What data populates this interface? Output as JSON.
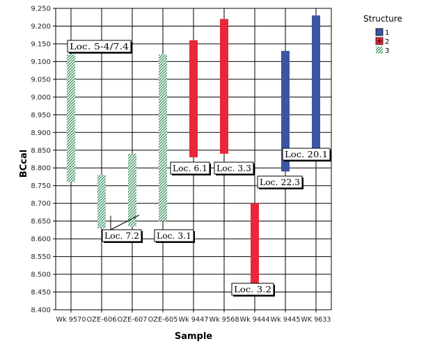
{
  "chart_data": {
    "type": "bar",
    "subtype": "floating-range",
    "xlabel": "Sample",
    "ylabel": "BCcal",
    "ylim": [
      8.4,
      9.25
    ],
    "yticks": [
      "9.250",
      "9.200",
      "9.150",
      "9.100",
      "9.050",
      "9.000",
      "8.950",
      "8.900",
      "8.850",
      "8.800",
      "8.750",
      "8.700",
      "8.650",
      "8.600",
      "8.550",
      "8.500",
      "8.450",
      "8.400"
    ],
    "categories": [
      "Wk 9570",
      "OZE-606",
      "OZE-607",
      "OZE-605",
      "Wk 9447",
      "Wk 9568",
      "Wk 9444",
      "Wk 9445",
      "WK 9633"
    ],
    "grid": true,
    "legend": {
      "title": "Structure",
      "placement": "top-right",
      "items": [
        {
          "label": "1",
          "color": "#3a55a4",
          "pattern": "solid"
        },
        {
          "label": "2",
          "color": "#e8283a",
          "pattern": "solid"
        },
        {
          "label": "3",
          "color": "#2e8b57",
          "pattern": "hatch"
        }
      ]
    },
    "series": [
      {
        "name": "1",
        "ranges": [
          {
            "category": "Wk 9445",
            "low": 8.79,
            "high": 9.13
          },
          {
            "category": "WK 9633",
            "low": 8.85,
            "high": 9.23
          }
        ]
      },
      {
        "name": "2",
        "ranges": [
          {
            "category": "Wk 9447",
            "low": 8.83,
            "high": 9.16
          },
          {
            "category": "Wk 9568",
            "low": 8.84,
            "high": 9.22
          },
          {
            "category": "Wk 9444",
            "low": 8.47,
            "high": 8.7
          }
        ]
      },
      {
        "name": "3",
        "ranges": [
          {
            "category": "Wk 9570",
            "low": 8.76,
            "high": 9.12
          },
          {
            "category": "OZE-606",
            "low": 8.63,
            "high": 8.78
          },
          {
            "category": "OZE-607",
            "low": 8.635,
            "high": 8.84
          },
          {
            "category": "OZE-605",
            "low": 8.65,
            "high": 9.12
          }
        ]
      }
    ],
    "annotations": [
      {
        "text": "Loc. 5-4/7.4"
      },
      {
        "text": "Loc. 7.2"
      },
      {
        "text": "Loc. 3.1"
      },
      {
        "text": "Loc. 6.1"
      },
      {
        "text": "Loc. 3.3"
      },
      {
        "text": "Loc. 3.2"
      },
      {
        "text": "Loc. 22.3"
      },
      {
        "text": "Loc. 20.1"
      }
    ]
  }
}
